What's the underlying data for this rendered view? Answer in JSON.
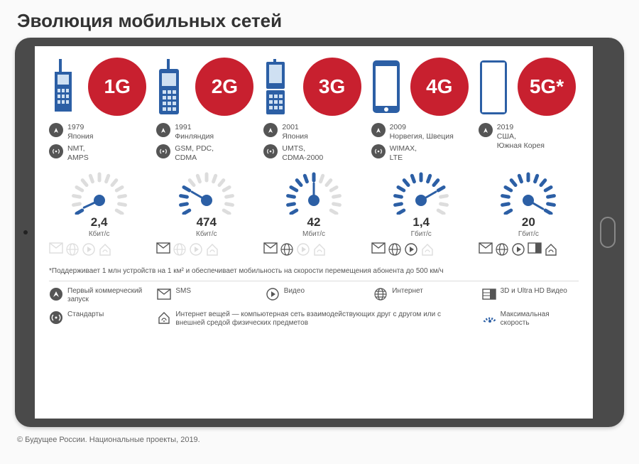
{
  "title": "Эволюция мобильных сетей",
  "colors": {
    "circle": "#c8202f",
    "gauge": "#2c5fa5",
    "icon_dark": "#555555",
    "icon_light": "#cccccc",
    "text_dark": "#333333",
    "text_mid": "#555555",
    "tablet_body": "#4a4a4a"
  },
  "generations": [
    {
      "label": "1G",
      "year": "1979",
      "country": "Япония",
      "standards": "NMT,\nAMPS",
      "speed_value": "2,4",
      "speed_unit": "Кбит/с",
      "gauge_angle": 5,
      "phone_type": "brick",
      "capabilities": {
        "sms": false,
        "internet": false,
        "video": false,
        "iot": false
      }
    },
    {
      "label": "2G",
      "year": "1991",
      "country": "Финляндия",
      "standards": "GSM, PDC,\nCDMA",
      "speed_value": "474",
      "speed_unit": "Кбит/с",
      "gauge_angle": 60,
      "phone_type": "candybar",
      "capabilities": {
        "sms": true,
        "internet": false,
        "video": false,
        "iot": false
      }
    },
    {
      "label": "3G",
      "year": "2001",
      "country": "Япония",
      "standards": "UMTS,\nCDMA-2000",
      "speed_value": "42",
      "speed_unit": "Мбит/с",
      "gauge_angle": 120,
      "phone_type": "flip",
      "capabilities": {
        "sms": true,
        "internet": true,
        "video": false,
        "iot": false
      }
    },
    {
      "label": "4G",
      "year": "2009",
      "country": "Норвегия, Швеция",
      "standards": "WIMAX,\nLTE",
      "speed_value": "1,4",
      "speed_unit": "Гбит/с",
      "gauge_angle": 180,
      "phone_type": "smartphone",
      "capabilities": {
        "sms": true,
        "internet": true,
        "video": true,
        "iot": false
      }
    },
    {
      "label": "5G*",
      "year": "2019",
      "country": "США,\nЮжная Корея",
      "standards": "",
      "speed_value": "20",
      "speed_unit": "Гбит/с",
      "gauge_angle": 240,
      "phone_type": "bezelless",
      "capabilities": {
        "sms": true,
        "internet": true,
        "video": true,
        "iot": true,
        "hd": true
      }
    }
  ],
  "footnote": "*Поддерживает 1 млн устройств на 1 км² и обеспечивает мобильность на скорости перемещения абонента до 500 км/ч",
  "legend": {
    "launch": "Первый коммерческий запуск",
    "standards": "Стандарты",
    "sms": "SMS",
    "video": "Видео",
    "internet": "Интернет",
    "hd": "3D и Ultra HD Видео",
    "iot": "Интернет вещей — компьютерная сеть взаимодействующих друг с другом или с внешней средой физических предметов",
    "speed": "Максимальная скорость"
  },
  "copyright": "© Будущее России. Национальные проекты, 2019."
}
